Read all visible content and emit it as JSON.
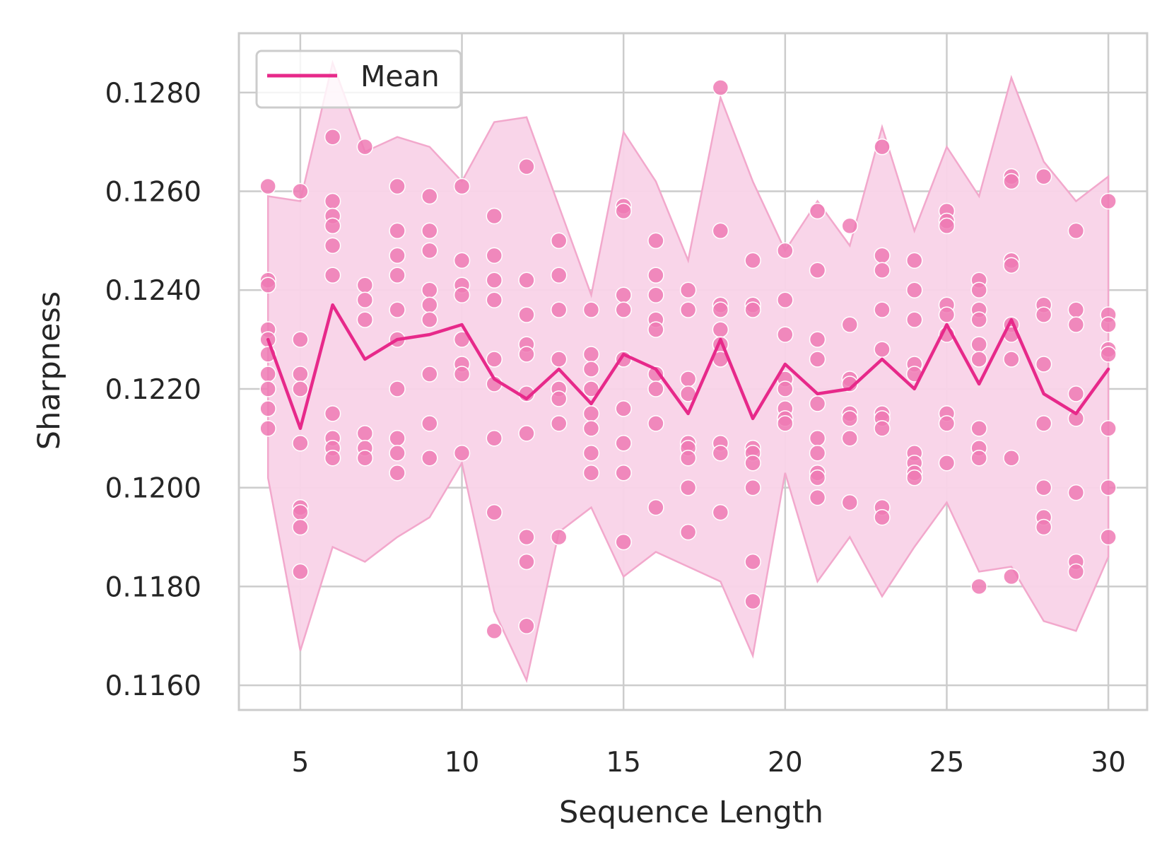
{
  "chart_data": {
    "type": "scatter",
    "xlabel": "Sequence Length",
    "ylabel": "Sharpness",
    "xlim": [
      3.1,
      31.2
    ],
    "ylim": [
      0.1155,
      0.1292
    ],
    "xticks": [
      5,
      10,
      15,
      20,
      25,
      30
    ],
    "xtick_labels": [
      "5",
      "10",
      "15",
      "20",
      "25",
      "30"
    ],
    "yticks": [
      0.116,
      0.118,
      0.12,
      0.122,
      0.124,
      0.126,
      0.128
    ],
    "ytick_labels": [
      "0.1160",
      "0.1180",
      "0.1200",
      "0.1220",
      "0.1240",
      "0.1260",
      "0.1280"
    ],
    "grid": true,
    "legend": {
      "position": "top-left",
      "entries": [
        "Mean"
      ]
    },
    "colors": {
      "line": "#e7298a",
      "points": "#ee7ab4",
      "band": "#f9d3e8",
      "band_edge": "#f2a8cc",
      "grid": "#cccccc"
    },
    "series": [
      {
        "name": "Mean",
        "x": [
          4,
          5,
          6,
          7,
          8,
          9,
          10,
          11,
          12,
          13,
          14,
          15,
          16,
          17,
          18,
          19,
          20,
          21,
          22,
          23,
          24,
          25,
          26,
          27,
          28,
          29,
          30
        ],
        "values": [
          0.123,
          0.1212,
          0.1237,
          0.1226,
          0.123,
          0.1231,
          0.1233,
          0.1222,
          0.1218,
          0.1224,
          0.1217,
          0.1227,
          0.1224,
          0.1215,
          0.123,
          0.1214,
          0.1225,
          0.1219,
          0.122,
          0.1226,
          0.122,
          0.1233,
          0.1221,
          0.1234,
          0.1219,
          0.1215,
          0.1224
        ]
      }
    ],
    "band": {
      "x": [
        4,
        5,
        6,
        7,
        8,
        9,
        10,
        11,
        12,
        13,
        14,
        15,
        16,
        17,
        18,
        19,
        20,
        21,
        22,
        23,
        24,
        25,
        26,
        27,
        28,
        29,
        30
      ],
      "upper": [
        0.1259,
        0.1258,
        0.1286,
        0.1268,
        0.1271,
        0.1269,
        0.1262,
        0.1274,
        0.1275,
        0.1257,
        0.1239,
        0.1272,
        0.1262,
        0.1246,
        0.1279,
        0.1262,
        0.1248,
        0.1258,
        0.1249,
        0.1273,
        0.1252,
        0.1269,
        0.1259,
        0.1283,
        0.1266,
        0.1258,
        0.1263
      ],
      "lower": [
        0.1202,
        0.1167,
        0.1188,
        0.1185,
        0.119,
        0.1194,
        0.1205,
        0.1175,
        0.1161,
        0.1191,
        0.1196,
        0.1182,
        0.1187,
        0.1184,
        0.1181,
        0.1166,
        0.1203,
        0.1181,
        0.119,
        0.1178,
        0.1188,
        0.1197,
        0.1183,
        0.1184,
        0.1173,
        0.1171,
        0.1186
      ]
    },
    "points": [
      {
        "x": 4,
        "y": [
          0.1261,
          0.1242,
          0.1241,
          0.1232,
          0.123,
          0.1227,
          0.1223,
          0.122,
          0.1216,
          0.1212
        ]
      },
      {
        "x": 5,
        "y": [
          0.126,
          0.123,
          0.1223,
          0.122,
          0.1209,
          0.1196,
          0.1195,
          0.1192,
          0.1183
        ]
      },
      {
        "x": 6,
        "y": [
          0.1271,
          0.1258,
          0.1255,
          0.1253,
          0.1249,
          0.1243,
          0.1215,
          0.121,
          0.1208,
          0.1206
        ]
      },
      {
        "x": 7,
        "y": [
          0.1269,
          0.1241,
          0.1238,
          0.1234,
          0.1211,
          0.1208,
          0.1206
        ]
      },
      {
        "x": 8,
        "y": [
          0.1261,
          0.1252,
          0.1247,
          0.1243,
          0.1236,
          0.123,
          0.122,
          0.121,
          0.1207,
          0.1203
        ]
      },
      {
        "x": 9,
        "y": [
          0.1259,
          0.1252,
          0.1248,
          0.124,
          0.1237,
          0.1234,
          0.1223,
          0.1213,
          0.1206
        ]
      },
      {
        "x": 10,
        "y": [
          0.1261,
          0.1246,
          0.1241,
          0.1239,
          0.123,
          0.1225,
          0.1223,
          0.1207
        ]
      },
      {
        "x": 11,
        "y": [
          0.1255,
          0.1247,
          0.1242,
          0.1238,
          0.1226,
          0.1221,
          0.121,
          0.1195,
          0.1171
        ]
      },
      {
        "x": 12,
        "y": [
          0.1265,
          0.1242,
          0.1235,
          0.1229,
          0.1227,
          0.1219,
          0.1211,
          0.119,
          0.1185,
          0.1172
        ]
      },
      {
        "x": 13,
        "y": [
          0.125,
          0.1243,
          0.1236,
          0.1226,
          0.122,
          0.1218,
          0.1213,
          0.119
        ]
      },
      {
        "x": 14,
        "y": [
          0.1236,
          0.1227,
          0.1224,
          0.122,
          0.1215,
          0.1212,
          0.1207,
          0.1203
        ]
      },
      {
        "x": 15,
        "y": [
          0.1257,
          0.1256,
          0.1239,
          0.1236,
          0.1226,
          0.1216,
          0.1209,
          0.1203,
          0.1189
        ]
      },
      {
        "x": 16,
        "y": [
          0.125,
          0.1243,
          0.1239,
          0.1234,
          0.1232,
          0.1223,
          0.122,
          0.1213,
          0.1196
        ]
      },
      {
        "x": 17,
        "y": [
          0.124,
          0.1236,
          0.1222,
          0.1219,
          0.1209,
          0.1208,
          0.1206,
          0.12,
          0.1191
        ]
      },
      {
        "x": 18,
        "y": [
          0.1281,
          0.1252,
          0.1237,
          0.1236,
          0.1232,
          0.1229,
          0.1226,
          0.1209,
          0.1207,
          0.1195
        ]
      },
      {
        "x": 19,
        "y": [
          0.1246,
          0.1237,
          0.1236,
          0.1208,
          0.1207,
          0.1205,
          0.12,
          0.1185,
          0.1177
        ]
      },
      {
        "x": 20,
        "y": [
          0.1248,
          0.1238,
          0.1231,
          0.1222,
          0.122,
          0.1216,
          0.1214,
          0.1213
        ]
      },
      {
        "x": 21,
        "y": [
          0.1256,
          0.1244,
          0.123,
          0.1226,
          0.1217,
          0.121,
          0.1207,
          0.1203,
          0.1202,
          0.1198
        ]
      },
      {
        "x": 22,
        "y": [
          0.1253,
          0.1233,
          0.1222,
          0.1221,
          0.1215,
          0.1214,
          0.121,
          0.1197
        ]
      },
      {
        "x": 23,
        "y": [
          0.1269,
          0.1247,
          0.1244,
          0.1236,
          0.1228,
          0.1215,
          0.1214,
          0.1212,
          0.1196,
          0.1194
        ]
      },
      {
        "x": 24,
        "y": [
          0.1246,
          0.124,
          0.1234,
          0.1225,
          0.1223,
          0.1207,
          0.1205,
          0.1203,
          0.1202
        ]
      },
      {
        "x": 25,
        "y": [
          0.1256,
          0.1254,
          0.1253,
          0.1237,
          0.1235,
          0.1231,
          0.1215,
          0.1213,
          0.1205
        ]
      },
      {
        "x": 26,
        "y": [
          0.1242,
          0.124,
          0.1236,
          0.1234,
          0.1229,
          0.1226,
          0.1212,
          0.1208,
          0.1206,
          0.118
        ]
      },
      {
        "x": 27,
        "y": [
          0.1263,
          0.1262,
          0.1246,
          0.1245,
          0.1233,
          0.1231,
          0.1226,
          0.1206,
          0.1182
        ]
      },
      {
        "x": 28,
        "y": [
          0.1263,
          0.1237,
          0.1235,
          0.1225,
          0.1213,
          0.12,
          0.1194,
          0.1192
        ]
      },
      {
        "x": 29,
        "y": [
          0.1252,
          0.1236,
          0.1233,
          0.1219,
          0.1214,
          0.1199,
          0.1185,
          0.1183
        ]
      },
      {
        "x": 30,
        "y": [
          0.1258,
          0.1235,
          0.1233,
          0.1228,
          0.1227,
          0.1212,
          0.12,
          0.119
        ]
      }
    ]
  }
}
